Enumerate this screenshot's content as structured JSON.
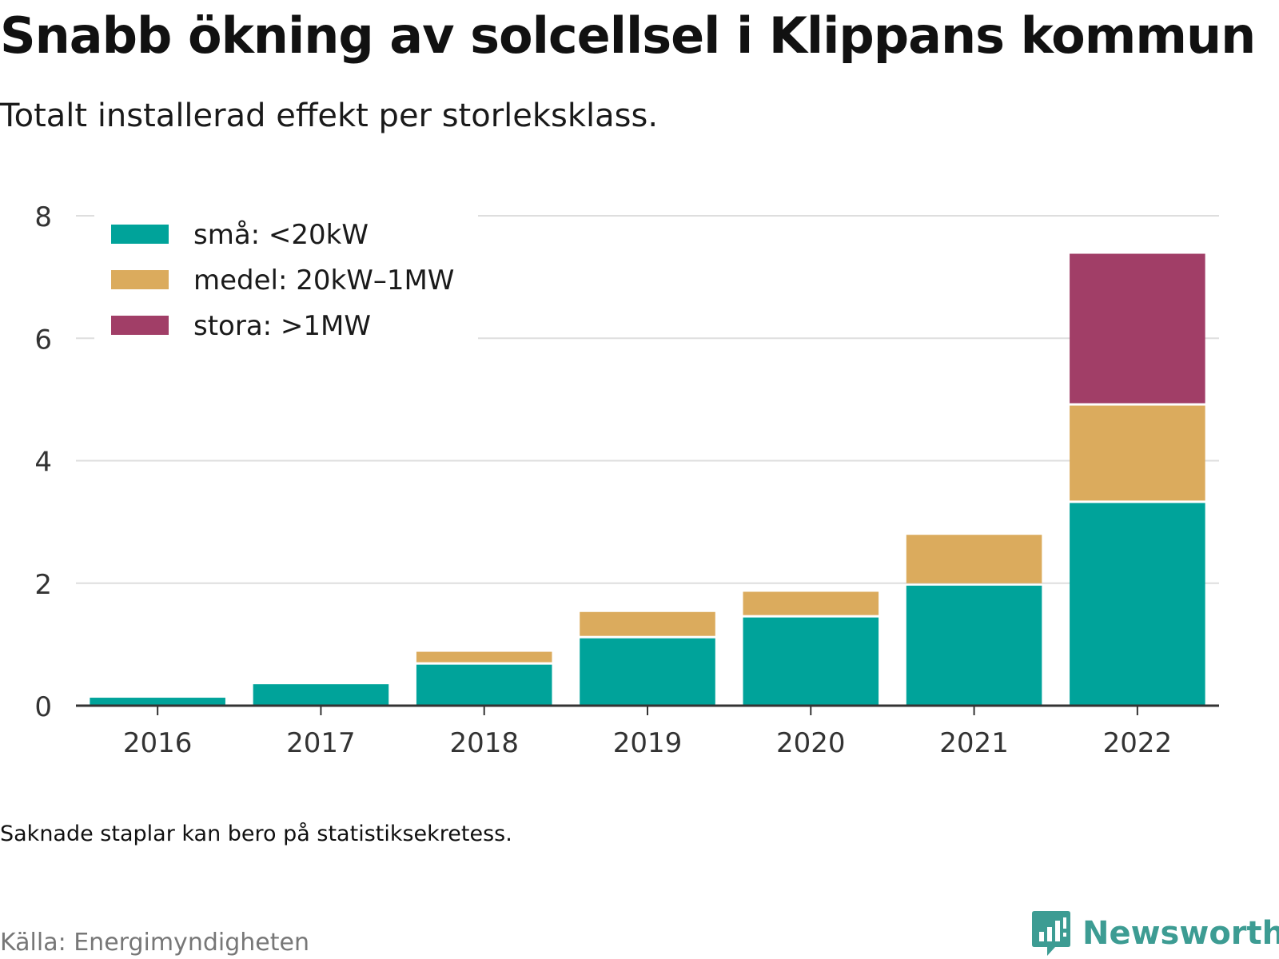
{
  "header": {
    "title": "Snabb ökning av solcellsel i Klippans kommun",
    "subtitle": "Totalt installerad effekt per storleksklass."
  },
  "footer": {
    "note": "Saknade staplar kan bero på statistiksekretess.",
    "source": "Källa: Energimyndigheten",
    "brand": "Newsworthy",
    "brand_color": "#3d9c93"
  },
  "chart_data": {
    "type": "bar",
    "stacked": true,
    "categories": [
      "2016",
      "2017",
      "2018",
      "2019",
      "2020",
      "2021",
      "2022"
    ],
    "series": [
      {
        "name": "små: <20kW",
        "color": "#00a39a",
        "values": [
          0.13,
          0.35,
          0.67,
          1.1,
          1.44,
          1.96,
          3.31
        ]
      },
      {
        "name": "medel: 20kW–1MW",
        "color": "#dbab5d",
        "values": [
          0,
          0,
          0.21,
          0.43,
          0.42,
          0.83,
          1.59
        ]
      },
      {
        "name": "stora: >1MW",
        "color": "#a13e67",
        "values": [
          0,
          0,
          0,
          0,
          0,
          0,
          2.48
        ]
      }
    ],
    "yticks": [
      0,
      2,
      4,
      6,
      8
    ],
    "ylim": [
      0,
      8
    ],
    "grid": true,
    "legend": "top-left",
    "xlabel": "",
    "ylabel": ""
  }
}
